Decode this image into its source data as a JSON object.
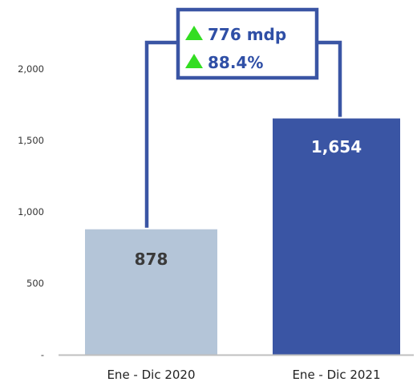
{
  "chart_data": {
    "type": "bar",
    "categories": [
      "Ene - Dic 2020",
      "Ene - Dic 2021"
    ],
    "values": [
      878,
      1654
    ],
    "value_labels": [
      "878",
      "1,654"
    ],
    "ylim": [
      0,
      2220
    ],
    "yticks": [
      0,
      500,
      1000,
      1500,
      2000
    ],
    "ytick_labels": [
      "-",
      "500",
      "1,000",
      "1,500",
      "2,000"
    ],
    "grid": false,
    "colors": {
      "bar_2020": "#b4c5d8",
      "bar_2021": "#3a55a4",
      "label_2020": "#3a3a3a",
      "label_2021": "#ffffff",
      "connector": "#3a55a4",
      "callout_text": "#2f4fa6",
      "up_arrow": "#33dd22",
      "axis": "#bfbfbf"
    },
    "callout": {
      "lines": [
        "776 mdp",
        "88.4%"
      ],
      "icon": "green-up-triangle-icon"
    }
  }
}
